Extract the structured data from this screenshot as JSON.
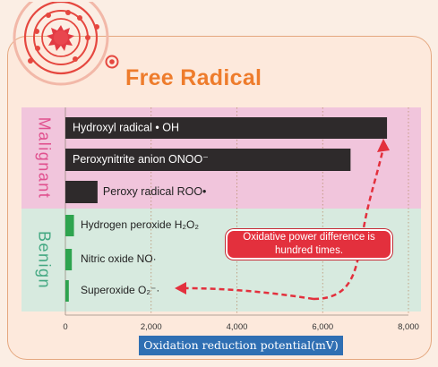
{
  "title": "Free Radical",
  "atom_icon": "free-radical-atom-icon",
  "colors": {
    "title": "#ee7c2c",
    "malignant_band": "#f1c5dc",
    "benign_band": "#d7eadf",
    "malignant_label": "#e0508e",
    "benign_label": "#43a882",
    "malignant_bar": "#2e2a2b",
    "benign_bar": "#2ea44f",
    "arrow": "#e3303d",
    "xlabel_box": "#2f6fb3"
  },
  "chart_data": {
    "type": "bar",
    "orientation": "horizontal",
    "groups": [
      {
        "label": "Malignant",
        "items": [
          {
            "label": "Hydroxyl radical • OH",
            "value": 7500
          },
          {
            "label": "Peroxynitrite anion ONOO⁻",
            "value": 6650
          },
          {
            "label": "Peroxy radical ROO•",
            "value": 750
          }
        ]
      },
      {
        "label": "Benign",
        "items": [
          {
            "label": "Hydrogen peroxide H₂O₂",
            "value": 200
          },
          {
            "label": "Nitric oxide NO·",
            "value": 150
          },
          {
            "label": "Superoxide O₂⁻·",
            "value": 80
          }
        ]
      }
    ],
    "xlim": [
      0,
      8000
    ],
    "xticks": [
      0,
      2000,
      4000,
      6000,
      8000
    ],
    "xtick_labels": [
      "0",
      "2,000",
      "4,000",
      "6,000",
      "8,000"
    ],
    "xlabel": "Oxidation reduction potential(mV)",
    "grid": "vertical dotted",
    "annotation": "Oxidative power difference is hundred times."
  }
}
